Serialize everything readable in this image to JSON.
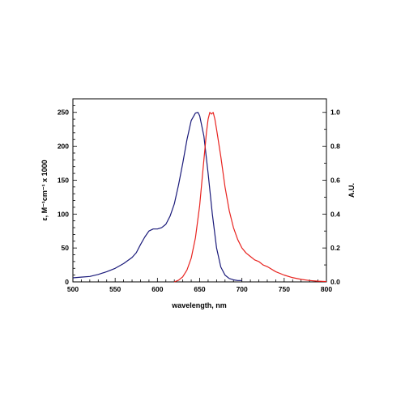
{
  "chart_data": {
    "type": "line",
    "xlabel": "wavelength, nm",
    "ylabel_left": "ε, M⁻¹cm⁻¹ x 1000",
    "ylabel_right": "A.U.",
    "xlim": [
      500,
      800
    ],
    "ylim_left": [
      0,
      270
    ],
    "ylim_right": [
      0,
      1.08
    ],
    "x_ticks": [
      500,
      550,
      600,
      650,
      700,
      750,
      800
    ],
    "y_left_ticks": [
      0,
      50,
      100,
      150,
      200,
      250
    ],
    "y_right_ticks": [
      "0.0",
      "0.2",
      "0.4",
      "0.6",
      "0.8",
      "1.0"
    ],
    "y_right_tick_values": [
      0,
      0.2,
      0.4,
      0.6,
      0.8,
      1.0
    ],
    "grid": false,
    "series": [
      {
        "axis": "left",
        "color": "#1a1a7a",
        "x": [
          500,
          510,
          520,
          530,
          540,
          550,
          560,
          570,
          575,
          580,
          585,
          590,
          595,
          600,
          605,
          610,
          615,
          620,
          625,
          630,
          635,
          640,
          645,
          648,
          650,
          655,
          660,
          665,
          670,
          675,
          680,
          685,
          690,
          695,
          700
        ],
        "y": [
          6,
          7,
          8,
          11,
          15,
          20,
          27,
          36,
          43,
          55,
          66,
          75,
          78,
          78,
          80,
          85,
          97,
          115,
          143,
          175,
          210,
          238,
          249,
          250,
          245,
          215,
          160,
          100,
          50,
          22,
          10,
          5,
          3,
          2,
          2
        ]
      },
      {
        "axis": "right",
        "color": "#e8231f",
        "x": [
          620,
          625,
          630,
          635,
          640,
          645,
          650,
          655,
          658,
          660,
          662,
          664,
          666,
          668,
          670,
          675,
          680,
          685,
          690,
          695,
          700,
          705,
          710,
          715,
          720,
          725,
          730,
          740,
          750,
          760,
          770,
          780,
          790,
          800
        ],
        "y": [
          0.0,
          0.01,
          0.03,
          0.07,
          0.14,
          0.26,
          0.45,
          0.72,
          0.88,
          0.96,
          1.0,
          0.99,
          1.0,
          0.96,
          0.9,
          0.74,
          0.56,
          0.42,
          0.32,
          0.25,
          0.2,
          0.17,
          0.15,
          0.13,
          0.12,
          0.1,
          0.09,
          0.06,
          0.04,
          0.025,
          0.015,
          0.008,
          0.004,
          0.002
        ]
      }
    ]
  }
}
